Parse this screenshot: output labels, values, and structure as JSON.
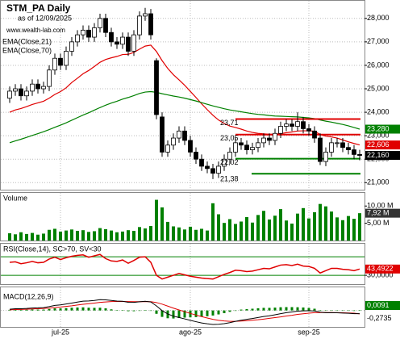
{
  "chart_data": [
    {
      "type": "candlestick",
      "title": "STM_PA Daily",
      "subtitle": "as of 12/09/2025",
      "source": "www.wealth-lab.com",
      "categories": [
        null,
        null,
        null,
        null,
        null,
        null,
        null,
        null,
        null,
        "jul-25",
        null,
        null,
        null,
        null,
        null,
        null,
        null,
        null,
        null,
        null,
        null,
        null,
        null,
        null,
        null,
        null,
        null,
        null,
        null,
        null,
        null,
        null,
        "ago-25",
        null,
        null,
        null,
        null,
        null,
        null,
        null,
        null,
        null,
        null,
        null,
        null,
        null,
        null,
        null,
        null,
        null,
        null,
        null,
        null,
        "sep-25",
        null,
        null,
        null,
        null,
        null,
        null,
        null,
        null,
        null
      ],
      "open": [
        24.6,
        24.9,
        25.0,
        24.7,
        24.9,
        25.2,
        25.0,
        25.1,
        25.8,
        26.3,
        26.0,
        26.6,
        27.0,
        27.3,
        27.5,
        27.2,
        27.6,
        28.0,
        27.4,
        27.0,
        26.9,
        27.2,
        26.6,
        27.3,
        28.1,
        28.2,
        26.2,
        23.8,
        22.3,
        22.6,
        22.9,
        23.2,
        22.8,
        22.3,
        22.0,
        21.7,
        21.6,
        21.4,
        21.7,
        22.0,
        22.3,
        22.7,
        22.6,
        22.4,
        22.5,
        22.7,
        22.9,
        22.8,
        23.1,
        23.4,
        23.5,
        23.4,
        23.6,
        23.3,
        23.2,
        22.9,
        21.9,
        22.3,
        22.7,
        22.7,
        22.5,
        22.4,
        22.2
      ],
      "high": [
        25.1,
        25.2,
        25.2,
        25.1,
        25.4,
        25.4,
        25.3,
        26.0,
        26.5,
        26.5,
        26.8,
        27.2,
        27.5,
        27.7,
        27.7,
        27.8,
        28.2,
        28.2,
        27.6,
        27.2,
        27.4,
        27.4,
        27.5,
        28.3,
        28.45,
        28.4,
        26.3,
        24.0,
        22.8,
        23.1,
        23.4,
        23.4,
        23.0,
        22.5,
        22.2,
        21.9,
        21.8,
        21.9,
        22.2,
        22.5,
        22.9,
        22.9,
        22.8,
        22.7,
        22.9,
        23.1,
        23.1,
        23.3,
        23.6,
        23.7,
        23.7,
        24.0,
        23.8,
        23.5,
        23.4,
        23.1,
        22.5,
        22.9,
        22.9,
        22.9,
        22.7,
        22.6,
        22.4
      ],
      "low": [
        24.4,
        24.7,
        24.5,
        24.5,
        24.7,
        24.8,
        24.8,
        24.9,
        25.6,
        25.8,
        25.8,
        26.4,
        26.8,
        27.1,
        27.0,
        27.0,
        27.4,
        27.2,
        26.8,
        26.7,
        26.7,
        26.4,
        26.4,
        27.1,
        27.9,
        27.1,
        23.7,
        22.1,
        22.1,
        22.4,
        22.7,
        22.6,
        22.1,
        21.8,
        21.5,
        21.4,
        21.15,
        21.2,
        21.5,
        21.8,
        22.1,
        22.4,
        22.2,
        22.2,
        22.3,
        22.5,
        22.6,
        22.6,
        22.9,
        23.2,
        23.2,
        23.2,
        23.1,
        23.0,
        22.7,
        21.75,
        21.7,
        22.1,
        22.5,
        22.3,
        22.2,
        22.0,
        21.95
      ],
      "close": [
        24.9,
        25.0,
        24.7,
        24.9,
        25.2,
        25.0,
        25.1,
        25.8,
        26.3,
        26.0,
        26.6,
        27.0,
        27.3,
        27.5,
        27.2,
        27.6,
        28.0,
        27.4,
        27.0,
        26.9,
        27.2,
        26.6,
        27.3,
        28.1,
        28.2,
        27.3,
        23.9,
        22.3,
        22.6,
        22.9,
        23.2,
        22.8,
        22.3,
        22.0,
        21.7,
        21.6,
        21.4,
        21.7,
        22.0,
        22.3,
        22.7,
        22.6,
        22.4,
        22.5,
        22.7,
        22.9,
        22.8,
        23.1,
        23.4,
        23.5,
        23.4,
        23.6,
        23.3,
        23.2,
        22.9,
        21.9,
        22.3,
        22.7,
        22.7,
        22.5,
        22.4,
        22.2,
        22.16
      ],
      "close_label": "22,160",
      "color_up": "#ffffff",
      "color_down": "#000000",
      "series": [
        {
          "name": "EMA(Close,21)",
          "color": "#e00000",
          "last_label": "22,606",
          "values": [
            24.0,
            24.1,
            24.16,
            24.24,
            24.33,
            24.4,
            24.47,
            24.6,
            24.76,
            24.88,
            25.04,
            25.27,
            25.45,
            25.64,
            25.78,
            25.95,
            26.13,
            26.25,
            26.32,
            26.38,
            26.46,
            26.47,
            26.55,
            26.69,
            26.82,
            26.86,
            26.59,
            26.2,
            25.87,
            25.6,
            25.38,
            25.15,
            24.89,
            24.63,
            24.36,
            24.11,
            23.87,
            23.67,
            23.52,
            23.41,
            23.35,
            23.28,
            23.2,
            23.14,
            23.1,
            23.08,
            23.06,
            23.06,
            23.09,
            23.13,
            23.16,
            23.2,
            23.21,
            23.21,
            23.19,
            23.05,
            22.98,
            22.95,
            22.9,
            22.82,
            22.74,
            22.67,
            22.606
          ]
        },
        {
          "name": "EMA(Close,70)",
          "color": "#008000",
          "last_label": "23,280",
          "values": [
            22.7,
            22.78,
            22.85,
            22.93,
            23.01,
            23.09,
            23.17,
            23.26,
            23.36,
            23.45,
            23.55,
            23.66,
            23.77,
            23.88,
            23.98,
            24.09,
            24.2,
            24.3,
            24.39,
            24.47,
            24.56,
            24.63,
            24.71,
            24.8,
            24.86,
            24.88,
            24.85,
            24.79,
            24.74,
            24.69,
            24.65,
            24.6,
            24.54,
            24.48,
            24.41,
            24.34,
            24.27,
            24.21,
            24.15,
            24.1,
            24.06,
            24.02,
            23.98,
            23.94,
            23.91,
            23.89,
            23.86,
            23.84,
            23.83,
            23.82,
            23.81,
            23.8,
            23.78,
            23.76,
            23.73,
            23.67,
            23.62,
            23.58,
            23.53,
            23.48,
            23.42,
            23.35,
            23.28
          ]
        }
      ],
      "levels": [
        {
          "value": 23.71,
          "label": "23,71",
          "color": "#e00000"
        },
        {
          "value": 23.05,
          "label": "23,05",
          "color": "#e00000"
        },
        {
          "value": 22.02,
          "label": "22,02",
          "color": "#008000"
        },
        {
          "value": 21.38,
          "label": "21,38",
          "color": "#008000"
        }
      ],
      "ylim": [
        20.7,
        28.75
      ],
      "yticks": [
        {
          "value": 21,
          "label": "21,000"
        },
        {
          "value": 22,
          "label": "22,000"
        },
        {
          "value": 23,
          "label": "23,000"
        },
        {
          "value": 24,
          "label": "24,000"
        },
        {
          "value": 25,
          "label": "25,000"
        },
        {
          "value": 26,
          "label": "26,000"
        },
        {
          "value": 27,
          "label": "27,000"
        },
        {
          "value": 28,
          "label": "28,000"
        }
      ],
      "grid": true
    },
    {
      "type": "bar",
      "title": "Volume",
      "color": "#008000",
      "last_label": "7,92 M",
      "values": [
        2.1,
        1.8,
        2.4,
        1.9,
        2.2,
        1.7,
        2.0,
        3.1,
        3.4,
        2.6,
        2.9,
        3.2,
        2.8,
        3.0,
        2.5,
        2.7,
        3.6,
        3.3,
        2.9,
        2.4,
        2.6,
        3.0,
        2.8,
        3.9,
        3.5,
        4.2,
        11.8,
        9.6,
        5.4,
        4.1,
        3.8,
        3.2,
        4.0,
        3.1,
        3.4,
        2.9,
        10.8,
        7.6,
        5.1,
        6.2,
        4.8,
        5.5,
        6.8,
        5.2,
        7.4,
        8.6,
        6.1,
        7.2,
        9.1,
        5.8,
        4.9,
        7.8,
        9.4,
        6.4,
        8.2,
        10.6,
        9.9,
        8.4,
        6.7,
        5.9,
        7.1,
        6.3,
        7.92
      ],
      "ylim": [
        0,
        13.8
      ],
      "yticks": [
        {
          "value": 5,
          "label": "5,00 M"
        },
        {
          "value": 10,
          "label": "10,00 M"
        }
      ]
    },
    {
      "type": "line",
      "title": "RSI(Close,14), SC>70, SV<30",
      "color": "#e00000",
      "last_label": "43,4922",
      "values": [
        58,
        59,
        55,
        57,
        60,
        57,
        58,
        65,
        69,
        64,
        68,
        71,
        73,
        74,
        69,
        72,
        75,
        66,
        61,
        60,
        63,
        56,
        62,
        69,
        70,
        58,
        30,
        22,
        26,
        30,
        34,
        31,
        28,
        26,
        24,
        23,
        22,
        27,
        32,
        36,
        41,
        40,
        38,
        39,
        42,
        45,
        44,
        48,
        52,
        53,
        51,
        54,
        50,
        49,
        45,
        35,
        40,
        45,
        45,
        43,
        42,
        40,
        43.4922
      ],
      "levels": [
        70,
        30
      ],
      "level_color": "#008000",
      "ylim": [
        11,
        98
      ],
      "yticks": [
        {
          "value": 30,
          "label": "30,0000"
        }
      ]
    },
    {
      "type": "macd",
      "title": "MACD(12,26,9)",
      "macd_color": "#000000",
      "signal_color": "#e00000",
      "histogram_color": "#008000",
      "macd": [
        0.1,
        0.14,
        0.14,
        0.16,
        0.2,
        0.21,
        0.23,
        0.31,
        0.41,
        0.45,
        0.52,
        0.6,
        0.68,
        0.75,
        0.77,
        0.81,
        0.87,
        0.86,
        0.81,
        0.76,
        0.74,
        0.66,
        0.65,
        0.7,
        0.74,
        0.69,
        0.37,
        -0.01,
        -0.28,
        -0.46,
        -0.57,
        -0.68,
        -0.8,
        -0.91,
        -1.01,
        -1.08,
        -1.13,
        -1.12,
        -1.07,
        -0.99,
        -0.88,
        -0.79,
        -0.72,
        -0.65,
        -0.57,
        -0.49,
        -0.43,
        -0.35,
        -0.26,
        -0.18,
        -0.12,
        -0.06,
        -0.03,
        -0.02,
        -0.04,
        -0.14,
        -0.19,
        -0.19,
        -0.19,
        -0.21,
        -0.23,
        -0.26,
        -0.2644
      ],
      "signal": [
        0.05,
        0.07,
        0.08,
        0.1,
        0.12,
        0.14,
        0.16,
        0.19,
        0.24,
        0.28,
        0.33,
        0.38,
        0.44,
        0.5,
        0.55,
        0.6,
        0.65,
        0.69,
        0.72,
        0.73,
        0.73,
        0.72,
        0.71,
        0.71,
        0.72,
        0.71,
        0.64,
        0.51,
        0.35,
        0.19,
        0.04,
        -0.1,
        -0.24,
        -0.37,
        -0.5,
        -0.61,
        -0.72,
        -0.8,
        -0.85,
        -0.88,
        -0.88,
        -0.86,
        -0.83,
        -0.79,
        -0.75,
        -0.7,
        -0.64,
        -0.58,
        -0.52,
        -0.45,
        -0.39,
        -0.32,
        -0.27,
        -0.22,
        -0.18,
        -0.17,
        -0.17,
        -0.17,
        -0.18,
        -0.19,
        -0.2,
        -0.22,
        -0.2735
      ],
      "histogram": [
        0.05,
        0.07,
        0.06,
        0.06,
        0.08,
        0.07,
        0.07,
        0.12,
        0.17,
        0.17,
        0.19,
        0.22,
        0.24,
        0.25,
        0.22,
        0.21,
        0.22,
        0.17,
        0.09,
        0.03,
        0.01,
        -0.06,
        -0.06,
        -0.01,
        0.02,
        -0.02,
        -0.27,
        -0.52,
        -0.63,
        -0.65,
        -0.61,
        -0.58,
        -0.56,
        -0.54,
        -0.51,
        -0.47,
        -0.41,
        -0.32,
        -0.22,
        -0.11,
        0.0,
        0.07,
        0.11,
        0.14,
        0.18,
        0.21,
        0.21,
        0.23,
        0.26,
        0.27,
        0.27,
        0.26,
        0.24,
        0.2,
        0.14,
        0.03,
        -0.02,
        -0.02,
        -0.01,
        -0.02,
        -0.03,
        -0.04,
        0.0091
      ],
      "histogram_label": "0,0091",
      "signal_label": "-0,2735",
      "ylim": [
        -1.33,
        1.87
      ]
    }
  ]
}
